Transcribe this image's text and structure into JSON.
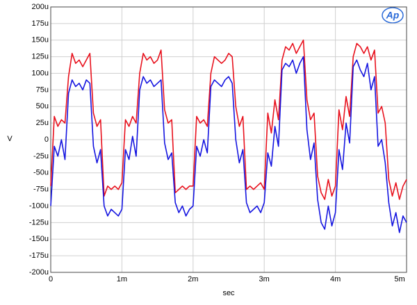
{
  "chart_data": {
    "type": "line",
    "logo": "Ap",
    "x_label": "sec",
    "y_label": "V",
    "xlim": [
      0,
      0.005
    ],
    "ylim": [
      -0.0002,
      0.0002
    ],
    "xticks": [
      0,
      {
        "value": 0.001,
        "label": "1m"
      },
      {
        "value": 0.002,
        "label": "2m"
      },
      {
        "value": 0.003,
        "label": "3m"
      },
      {
        "value": 0.004,
        "label": "4m"
      },
      {
        "value": 0.005,
        "label": "5m"
      }
    ],
    "yticks": [
      {
        "value": -0.0002,
        "label": "-200u"
      },
      {
        "value": -0.000175,
        "label": "-175u"
      },
      {
        "value": -0.00015,
        "label": "-150u"
      },
      {
        "value": -0.000125,
        "label": "-125u"
      },
      {
        "value": -0.0001,
        "label": "-100u"
      },
      {
        "value": -7.5e-05,
        "label": "-75u"
      },
      {
        "value": -5e-05,
        "label": "-50u"
      },
      {
        "value": -2.5e-05,
        "label": "-25u"
      },
      0,
      {
        "value": 2.5e-05,
        "label": "25u"
      },
      {
        "value": 5e-05,
        "label": "50u"
      },
      {
        "value": 7.5e-05,
        "label": "75u"
      },
      {
        "value": 0.0001,
        "label": "100u"
      },
      {
        "value": 0.000125,
        "label": "125u"
      },
      {
        "value": 0.00015,
        "label": "150u"
      },
      {
        "value": 0.000175,
        "label": "175u"
      },
      {
        "value": 0.0002,
        "label": "200u"
      }
    ],
    "grid": true,
    "x": [
      0,
      5e-05,
      0.0001,
      0.00015,
      0.0002,
      0.00025,
      0.0003,
      0.00035,
      0.0004,
      0.00045,
      0.0005,
      0.00055,
      0.0006,
      0.00065,
      0.0007,
      0.00075,
      0.0008,
      0.00085,
      0.0009,
      0.00095,
      0.001,
      0.00105,
      0.0011,
      0.00115,
      0.0012,
      0.00125,
      0.0013,
      0.00135,
      0.0014,
      0.00145,
      0.0015,
      0.00155,
      0.0016,
      0.00165,
      0.0017,
      0.00175,
      0.0018,
      0.00185,
      0.0019,
      0.00195,
      0.002,
      0.00205,
      0.0021,
      0.00215,
      0.0022,
      0.00225,
      0.0023,
      0.00235,
      0.0024,
      0.00245,
      0.0025,
      0.00255,
      0.0026,
      0.00265,
      0.0027,
      0.00275,
      0.0028,
      0.00285,
      0.0029,
      0.00295,
      0.003,
      0.00305,
      0.0031,
      0.00315,
      0.0032,
      0.00325,
      0.0033,
      0.00335,
      0.0034,
      0.00345,
      0.0035,
      0.00355,
      0.0036,
      0.00365,
      0.0037,
      0.00375,
      0.0038,
      0.00385,
      0.0039,
      0.00395,
      0.004,
      0.00405,
      0.0041,
      0.00415,
      0.0042,
      0.00425,
      0.0043,
      0.00435,
      0.0044,
      0.00445,
      0.0045,
      0.00455,
      0.0046,
      0.00465,
      0.0047,
      0.00475,
      0.0048,
      0.00485,
      0.0049,
      0.00495,
      0.005
    ],
    "series": [
      {
        "color": "#e8101c",
        "values": [
          -7e-05,
          3.5e-05,
          2e-05,
          3e-05,
          2.5e-05,
          9.5e-05,
          0.00013,
          0.000115,
          0.00012,
          0.00011,
          0.00012,
          0.00013,
          4e-05,
          2e-05,
          3e-05,
          -8.5e-05,
          -7e-05,
          -7.5e-05,
          -7e-05,
          -7.5e-05,
          -6.5e-05,
          3e-05,
          2e-05,
          3.5e-05,
          2.5e-05,
          0.0001,
          0.00013,
          0.00012,
          0.000125,
          0.000115,
          0.00012,
          0.000135,
          4.5e-05,
          2.5e-05,
          3e-05,
          -8e-05,
          -7.5e-05,
          -7e-05,
          -7.5e-05,
          -7e-05,
          -7e-05,
          3.5e-05,
          2.5e-05,
          3e-05,
          2e-05,
          0.0001,
          0.000125,
          0.00012,
          0.000115,
          0.00012,
          0.00013,
          0.000125,
          5e-05,
          2e-05,
          3.5e-05,
          -7.5e-05,
          -7e-05,
          -7.5e-05,
          -7e-05,
          -6.5e-05,
          -7.5e-05,
          4e-05,
          1e-05,
          6e-05,
          3e-05,
          0.00012,
          0.00014,
          0.000135,
          0.000145,
          0.00013,
          0.00014,
          0.00015,
          6e-05,
          3e-05,
          4e-05,
          -5.5e-05,
          -8e-05,
          -9e-05,
          -6e-05,
          -8.5e-05,
          -7e-05,
          4.5e-05,
          1.5e-05,
          6.5e-05,
          3.5e-05,
          0.000125,
          0.000145,
          0.00014,
          0.00013,
          0.00014,
          0.00012,
          0.000135,
          4e-05,
          5e-05,
          2.5e-05,
          -6e-05,
          -8.5e-05,
          -6.5e-05,
          -9e-05,
          -7e-05,
          -6e-05
        ]
      },
      {
        "color": "#1414e0",
        "values": [
          -0.0001,
          -1e-05,
          -2.5e-05,
          0,
          -3e-05,
          7e-05,
          9e-05,
          8e-05,
          8.5e-05,
          7.5e-05,
          9e-05,
          8.5e-05,
          -1e-05,
          -3.5e-05,
          -1.5e-05,
          -0.0001,
          -0.000115,
          -0.000105,
          -0.00011,
          -0.000115,
          -0.000105,
          -1.5e-05,
          -3e-05,
          5e-06,
          -2.5e-05,
          7.5e-05,
          9.5e-05,
          8.5e-05,
          9e-05,
          8e-05,
          8.5e-05,
          9e-05,
          -5e-06,
          -3e-05,
          -2e-05,
          -9.5e-05,
          -0.00011,
          -0.0001,
          -0.000115,
          -0.000105,
          -0.0001,
          -1e-05,
          -2.5e-05,
          0,
          -2e-05,
          8e-05,
          9e-05,
          8.5e-05,
          8e-05,
          9e-05,
          9.5e-05,
          8.5e-05,
          0,
          -3.5e-05,
          -1.5e-05,
          -9.5e-05,
          -0.00011,
          -0.000105,
          -0.0001,
          -0.00011,
          -9.5e-05,
          -2e-05,
          -4e-05,
          2e-05,
          -1e-05,
          0.000105,
          0.000115,
          0.00011,
          0.00012,
          0.0001,
          0.000115,
          0.000125,
          1.5e-05,
          -3e-05,
          -5e-06,
          -9e-05,
          -0.000125,
          -0.000135,
          -0.0001,
          -0.00013,
          -0.00011,
          -1.5e-05,
          -4.5e-05,
          2.5e-05,
          -5e-06,
          0.00011,
          0.00012,
          0.000105,
          9.5e-05,
          0.000115,
          7.5e-05,
          9.5e-05,
          -1e-05,
          0,
          -3.5e-05,
          -9.5e-05,
          -0.00013,
          -0.00011,
          -0.00014,
          -0.000115,
          -0.000125
        ]
      }
    ]
  }
}
